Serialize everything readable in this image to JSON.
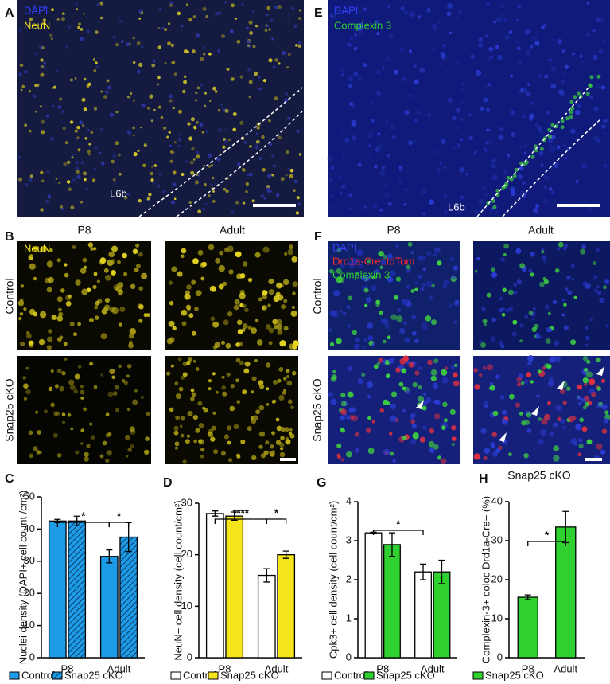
{
  "panel_a": {
    "letter": "A",
    "stain_1": "DAPI",
    "stain_2": "NeuN",
    "layer": "L6b"
  },
  "panel_e": {
    "letter": "E",
    "stain_1": "DAPI",
    "stain_2": "Complexin 3",
    "layer": "L6b"
  },
  "panel_b": {
    "letter": "B",
    "columns": [
      "P8",
      "Adult"
    ],
    "rows": [
      "Control",
      "Snap25 cKO"
    ],
    "stain": "NeuN"
  },
  "panel_f": {
    "letter": "F",
    "columns": [
      "P8",
      "Adult"
    ],
    "rows": [
      "Control",
      "Snap25 cKO"
    ],
    "stains": [
      "DAPI",
      "Drd1a-Cre::tdTom",
      "Complexin 3"
    ]
  },
  "chart_data": [
    {
      "type": "bar",
      "panel": "C",
      "ylabel": "Nuclei density (DAPI+ cell count /cm²)",
      "categories": [
        "P8",
        "Adult"
      ],
      "series": [
        {
          "name": "Control",
          "color": "#1e9be6",
          "values": [
            42.5,
            31.5
          ],
          "errors": [
            0.5,
            2
          ]
        },
        {
          "name": "Snap25 cKO",
          "color": "#1e9be6",
          "pattern": "hatched",
          "values": [
            42.5,
            37.5
          ],
          "errors": [
            1.5,
            4.5
          ]
        }
      ],
      "ylim": [
        0,
        50
      ],
      "yticks": [
        0,
        10,
        20,
        30,
        40,
        50
      ],
      "annotations": [
        "*",
        "*"
      ]
    },
    {
      "type": "bar",
      "panel": "D",
      "ylabel": "NeuN+ cell density (cell count/cm²)",
      "categories": [
        "P8",
        "Adult"
      ],
      "series": [
        {
          "name": "Control",
          "color": "#ffffff",
          "values": [
            28,
            16
          ],
          "errors": [
            0.5,
            1.3
          ]
        },
        {
          "name": "Snap25 cKO",
          "color": "#f5e51b",
          "values": [
            27.5,
            20
          ],
          "errors": [
            0.8,
            0.7
          ]
        }
      ],
      "ylim": [
        0,
        30
      ],
      "yticks": [
        0,
        10,
        20,
        30
      ],
      "annotations": [
        "****",
        "*"
      ]
    },
    {
      "type": "bar",
      "panel": "G",
      "ylabel": "Cpk3+ cell density (cell count/cm²)",
      "categories": [
        "P8",
        "Adult"
      ],
      "series": [
        {
          "name": "Control",
          "color": "#ffffff",
          "values": [
            3.2,
            2.2
          ],
          "errors": [
            0.02,
            0.2
          ]
        },
        {
          "name": "Snap25 cKO",
          "color": "#2fd12f",
          "values": [
            2.9,
            2.2
          ],
          "errors": [
            0.3,
            0.3
          ]
        }
      ],
      "ylim": [
        0,
        4
      ],
      "yticks": [
        0,
        1,
        2,
        3,
        4
      ],
      "annotations": [
        "*"
      ]
    },
    {
      "type": "bar",
      "panel": "H",
      "title": "Snap25 cKO",
      "ylabel": "Complexin-3+ coloc Drd1a-Cre+ (%)",
      "categories": [
        "P8",
        "Adult"
      ],
      "series": [
        {
          "name": "Snap25 cKO",
          "color": "#2fd12f",
          "values": [
            15.5,
            33.5
          ],
          "errors": [
            0.6,
            4
          ]
        }
      ],
      "ylim": [
        0,
        40
      ],
      "yticks": [
        0,
        10,
        20,
        30,
        40
      ],
      "annotations": [
        "*"
      ]
    }
  ]
}
